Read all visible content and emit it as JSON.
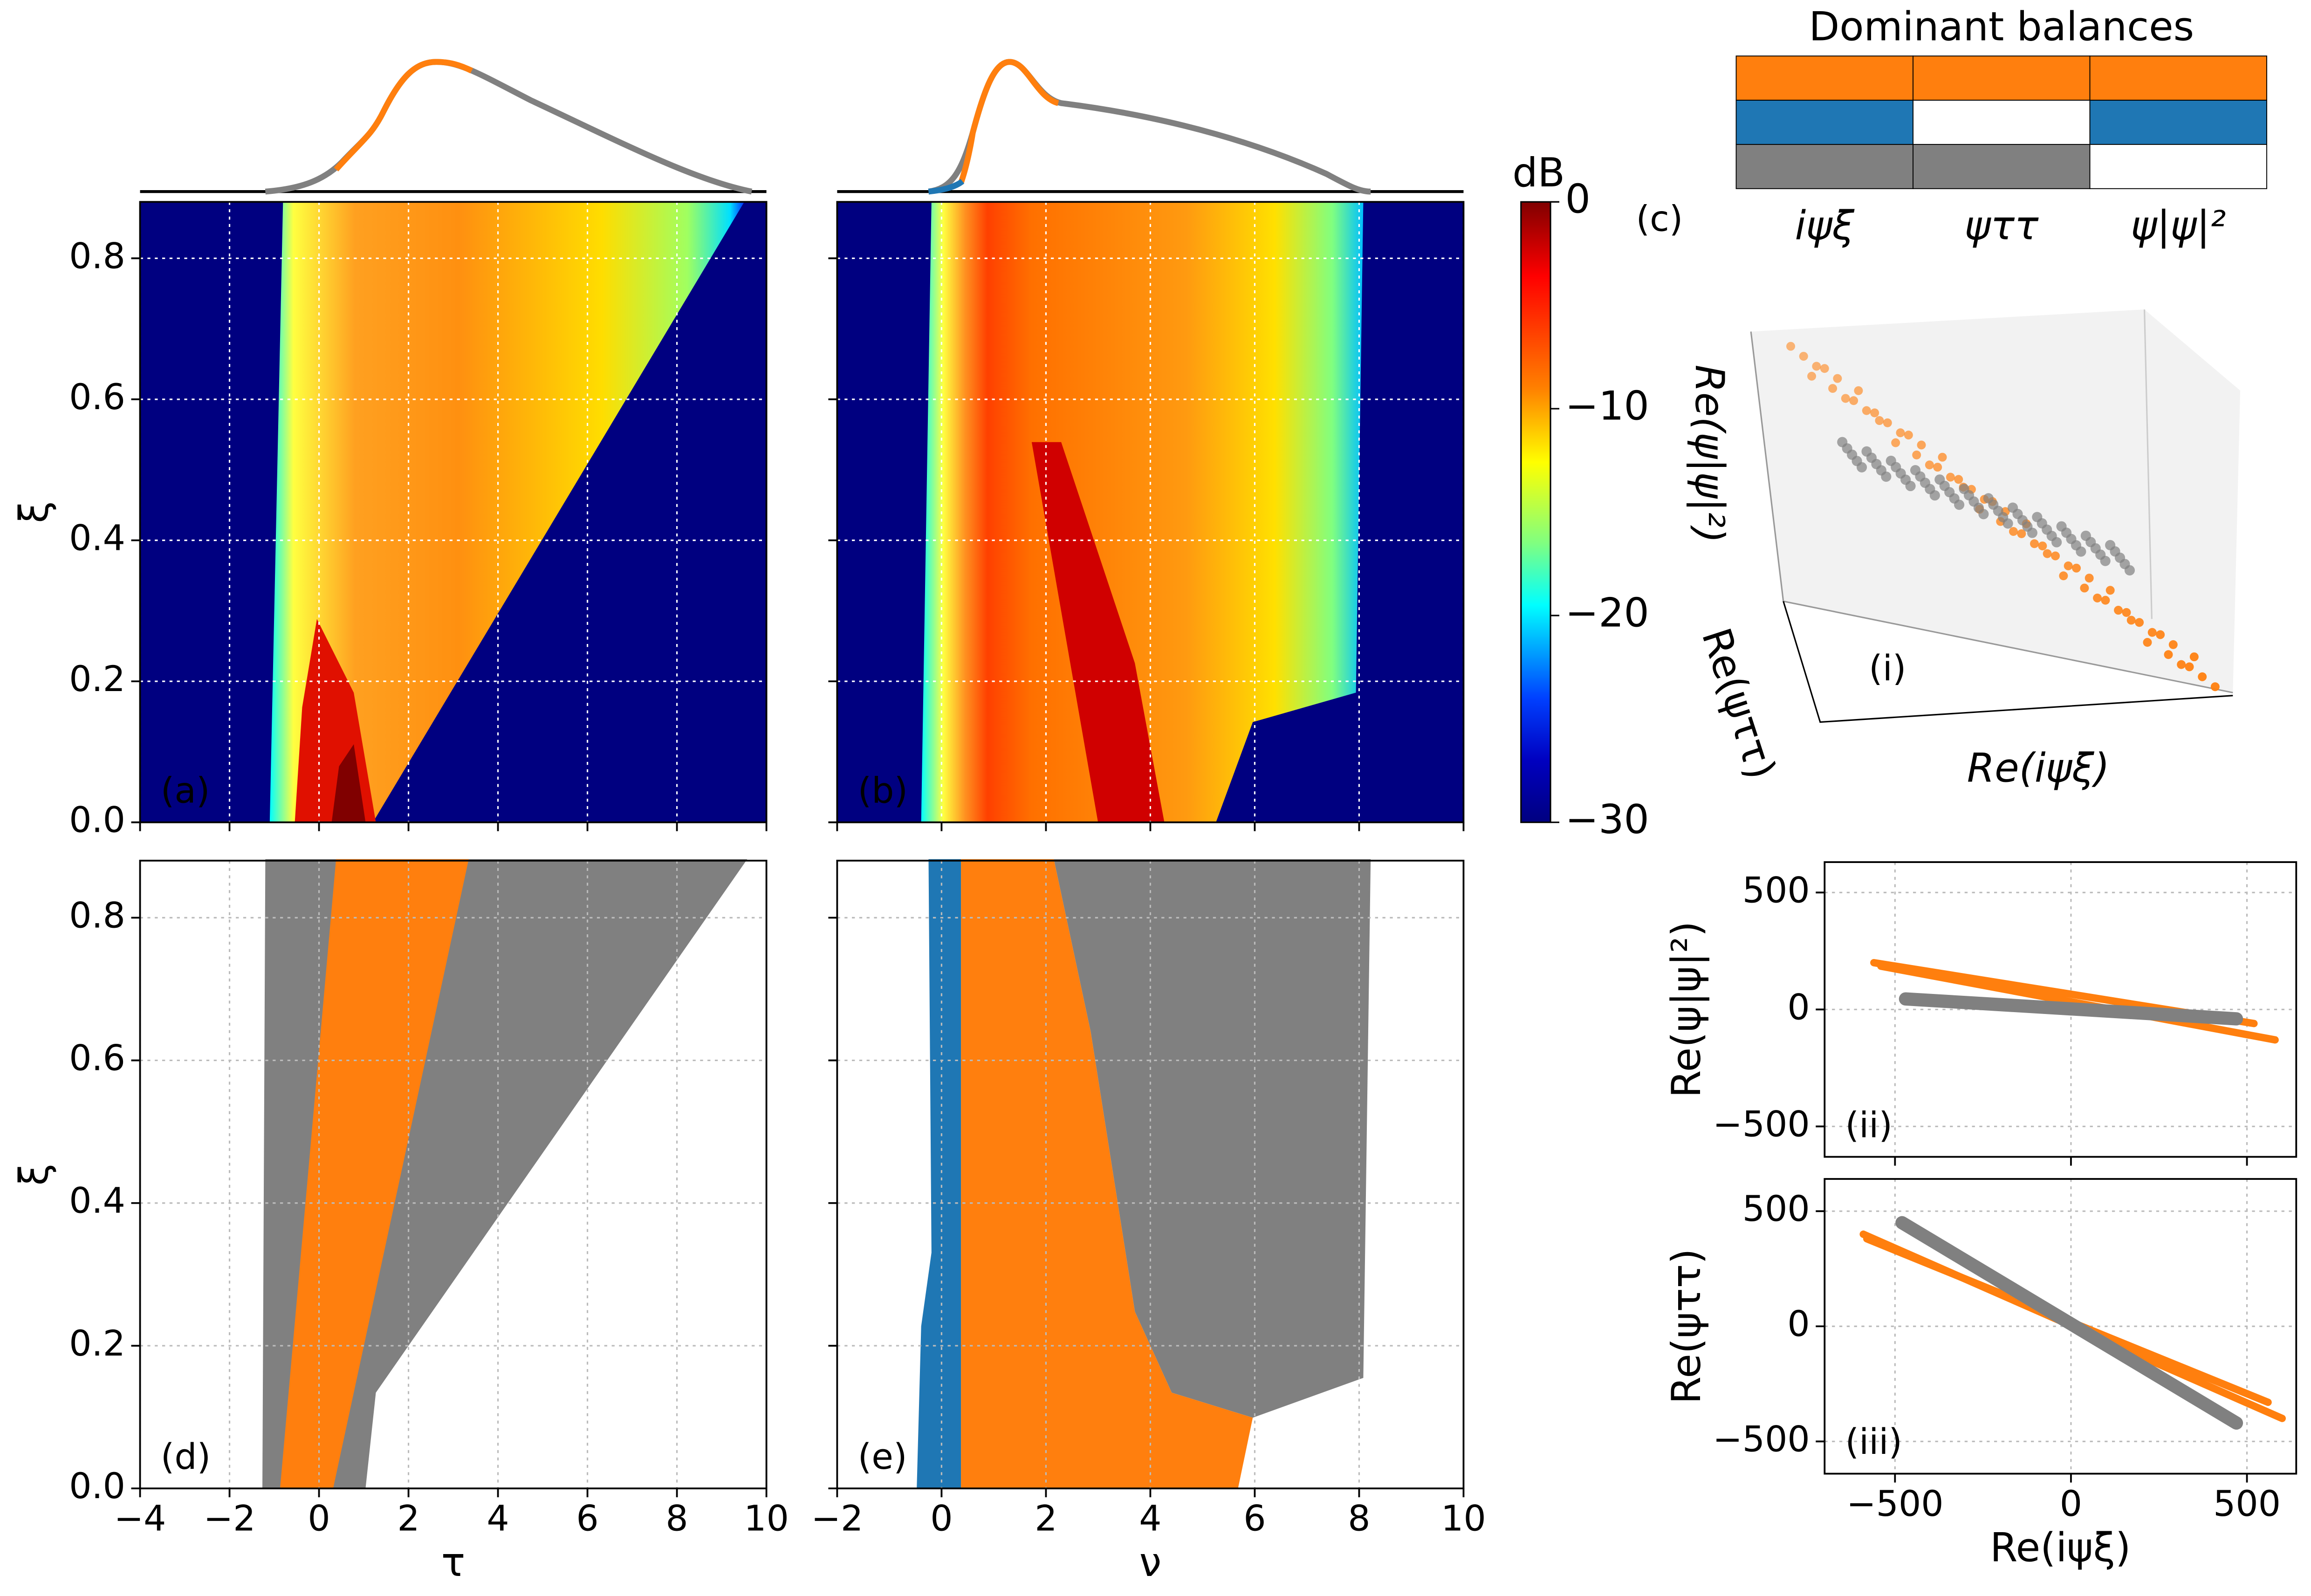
{
  "chart_data": [
    {
      "type": "heatmap",
      "annotation": "(a)",
      "ylabel": "ξ",
      "xlim": [
        -4,
        10
      ],
      "ylim": [
        0,
        0.88
      ],
      "xticks": [
        -4,
        -2,
        0,
        2,
        4,
        6,
        8,
        10
      ],
      "yticks": [
        {
          "value": 0,
          "label": "0.0"
        },
        0.2,
        0.4,
        0.6,
        0.8
      ],
      "grid": true
    },
    {
      "type": "heatmap",
      "annotation": "(b)",
      "xlim": [
        -2,
        10
      ],
      "ylim": [
        0,
        0.88
      ],
      "xticks": [
        -2,
        0,
        2,
        4,
        6,
        8,
        10
      ],
      "yticks": [
        0,
        0.2,
        0.4,
        0.6,
        0.8
      ],
      "grid": true
    },
    {
      "type": "colorbar",
      "label": "dB",
      "colormap": "jet",
      "clim": [
        -30,
        0
      ],
      "cticks": [
        0,
        {
          "value": -10,
          "label": "−10"
        },
        {
          "value": -20,
          "label": "−20"
        },
        {
          "value": -30,
          "label": "−30"
        }
      ]
    },
    {
      "type": "region",
      "annotation": "(d)",
      "xlabel": "τ",
      "ylabel": "ξ",
      "xlim": [
        -4,
        10
      ],
      "ylim": [
        0,
        0.88
      ],
      "xticks": [
        {
          "value": -4,
          "label": "−4"
        },
        {
          "value": -2,
          "label": "−2"
        },
        0,
        2,
        4,
        6,
        8,
        10
      ],
      "yticks": [
        {
          "value": 0,
          "label": "0.0"
        },
        0.2,
        0.4,
        0.6,
        0.8
      ],
      "grid": true
    },
    {
      "type": "region",
      "annotation": "(e)",
      "xlabel": "ν",
      "xlim": [
        -2,
        10
      ],
      "ylim": [
        0,
        0.88
      ],
      "xticks": [
        {
          "value": -2,
          "label": "−2"
        },
        0,
        2,
        4,
        6,
        8,
        10
      ],
      "yticks": [
        0,
        0.2,
        0.4,
        0.6,
        0.8
      ],
      "grid": true
    },
    {
      "type": "table",
      "title": "Dominant balances",
      "annotation": "(c)",
      "columns": [
        "iψξ",
        "ψττ",
        "ψ|ψ|²"
      ],
      "cells": [
        [
          "#ff7f0e",
          "#ff7f0e",
          "#ff7f0e"
        ],
        [
          "#1f77b4",
          "#ffffff",
          "#1f77b4"
        ],
        [
          "#808080",
          "#808080",
          "#ffffff"
        ]
      ]
    },
    {
      "type": "scatter3d",
      "annotation": "(i)",
      "xlabel": "Re(iψξ)",
      "ylabel": "Re(ψττ)",
      "zlabel": "Re(ψ|ψ|²)"
    },
    {
      "type": "scatter",
      "annotation": "(ii)",
      "ylabel": "Re(ψ|ψ|²)",
      "xlim": [
        -700,
        640
      ],
      "ylim": [
        -630,
        630
      ],
      "xticks": [
        -500,
        0,
        500
      ],
      "yticks": [
        {
          "value": -500,
          "label": "−500"
        },
        0,
        500
      ],
      "grid": true
    },
    {
      "type": "scatter",
      "annotation": "(iii)",
      "xlabel": "Re(iψξ)",
      "ylabel": "Re(ψττ)",
      "xlim": [
        -700,
        640
      ],
      "ylim": [
        -640,
        640
      ],
      "xticks": [
        {
          "value": -500,
          "label": "−500"
        },
        0,
        500
      ],
      "yticks": [
        {
          "value": -500,
          "label": "−500"
        },
        0,
        500
      ],
      "grid": true
    }
  ]
}
